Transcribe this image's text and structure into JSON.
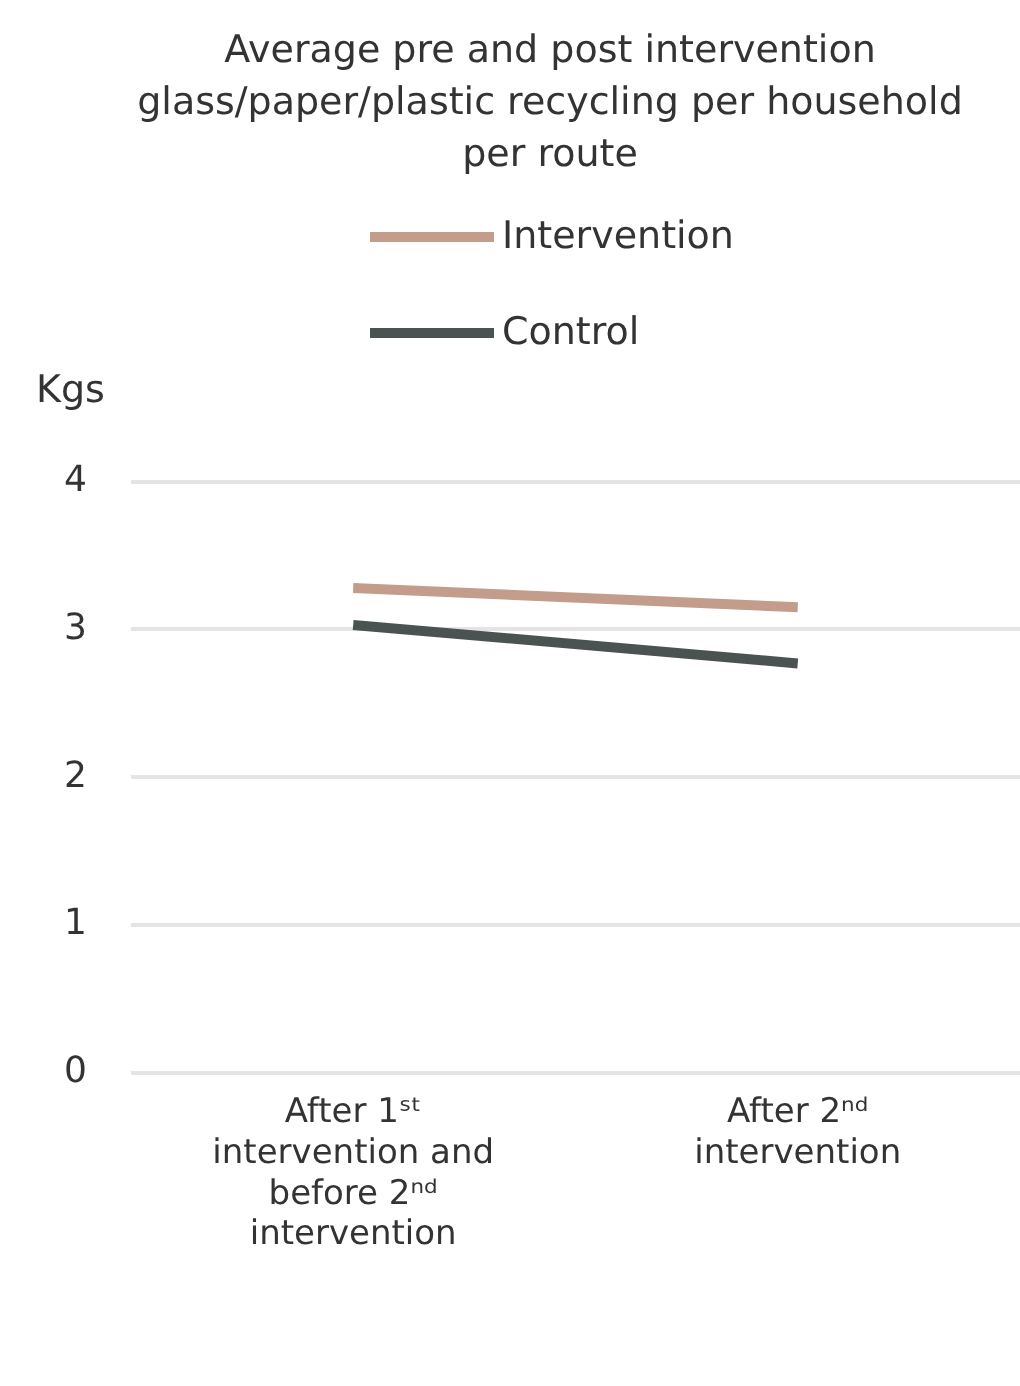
{
  "chart_data": {
    "type": "line",
    "title": "Average pre and post intervention glass/paper/plastic recycling per household per route",
    "ylabel": "Kgs",
    "categories": [
      "After 1ˢᵗ intervention and before 2ⁿᵈ intervention",
      "After 2ⁿᵈ intervention"
    ],
    "series": [
      {
        "name": "Intervention",
        "color": "#c39c8c",
        "values": [
          3.28,
          3.15
        ]
      },
      {
        "name": "Control",
        "color": "#4b5352",
        "values": [
          3.03,
          2.77
        ]
      }
    ],
    "ylim": [
      0,
      4
    ],
    "yticks": [
      0,
      1,
      2,
      3,
      4
    ],
    "grid": "y",
    "legend": "top",
    "marker": "none",
    "line_style": "solid"
  }
}
